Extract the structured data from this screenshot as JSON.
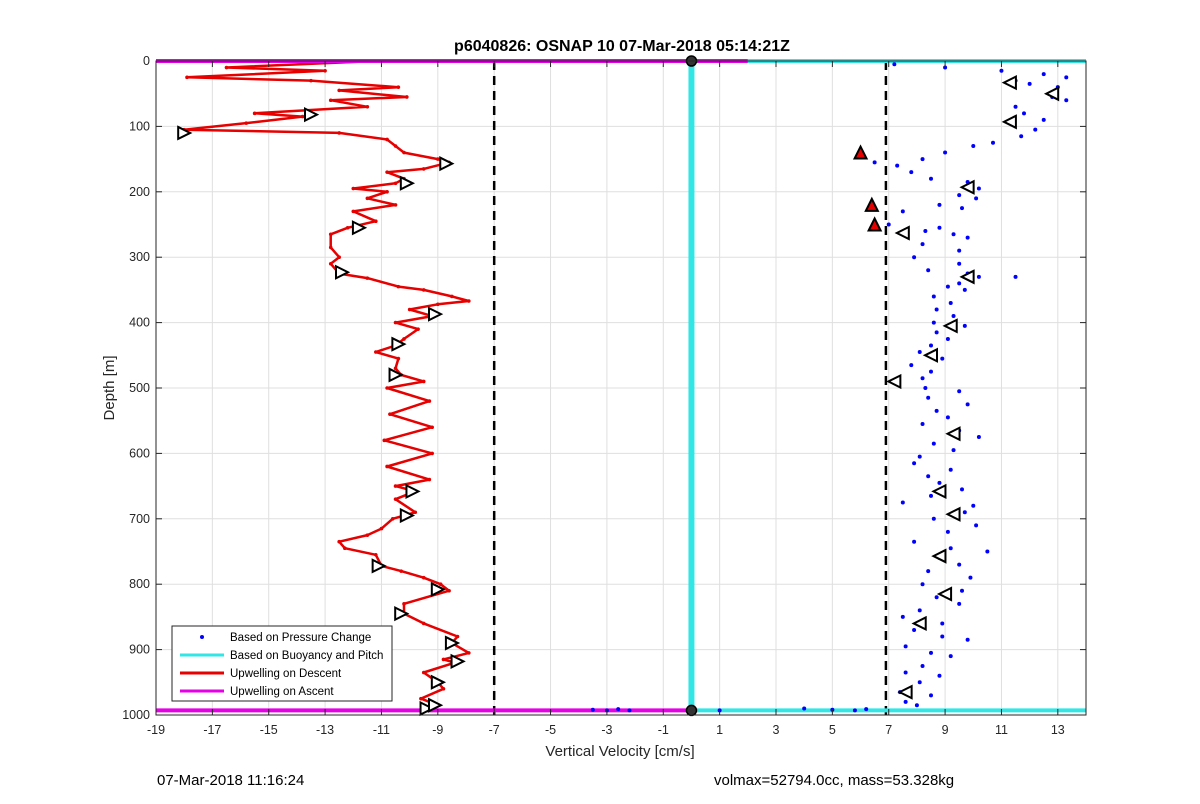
{
  "chart_data": {
    "type": "scatter",
    "title": "p6040826: OSNAP 10 07-Mar-2018 05:14:21Z",
    "xlabel": "Vertical Velocity [cm/s]",
    "ylabel": "Depth [m]",
    "xlim": [
      -19,
      14
    ],
    "ylim": [
      0,
      1000
    ],
    "y_reversed": true,
    "grid": true,
    "x_ticks": [
      -19,
      -17,
      -15,
      -13,
      -11,
      -9,
      -7,
      -5,
      -3,
      -1,
      1,
      3,
      5,
      7,
      9,
      11,
      13
    ],
    "y_ticks": [
      0,
      100,
      200,
      300,
      400,
      500,
      600,
      700,
      800,
      900,
      1000
    ],
    "legend": {
      "placement": "bottom-left",
      "entries": [
        {
          "label": "Based on Pressure Change",
          "color": "#0000ff",
          "style": "dot"
        },
        {
          "label": "Based on Buoyancy and Pitch",
          "color": "#33e6e6",
          "style": "line"
        },
        {
          "label": "Upwelling on Descent",
          "color": "#e60000",
          "style": "line"
        },
        {
          "label": "Upwelling on Ascent",
          "color": "#e600e6",
          "style": "line"
        }
      ]
    },
    "reference_lines": [
      {
        "x": -7,
        "style": "dashed",
        "color": "#000000"
      },
      {
        "x": 6.9,
        "style": "dashed",
        "color": "#000000"
      }
    ],
    "series": [
      {
        "name": "Upwelling on Descent",
        "color": "#e60000",
        "points": [
          [
            -11.2,
            0
          ],
          [
            -16.5,
            10
          ],
          [
            -13,
            15
          ],
          [
            -17.9,
            25
          ],
          [
            -13.5,
            30
          ],
          [
            -10.4,
            40
          ],
          [
            -12.5,
            45
          ],
          [
            -10.1,
            55
          ],
          [
            -12.8,
            60
          ],
          [
            -11.5,
            70
          ],
          [
            -15.5,
            80
          ],
          [
            -13.8,
            85
          ],
          [
            -15.8,
            95
          ],
          [
            -18,
            105
          ],
          [
            -12.5,
            110
          ],
          [
            -10.8,
            120
          ],
          [
            -10.5,
            130
          ],
          [
            -10.2,
            140
          ],
          [
            -9,
            150
          ],
          [
            -8.6,
            155
          ],
          [
            -9.5,
            165
          ],
          [
            -10.8,
            170
          ],
          [
            -10.2,
            180
          ],
          [
            -10.5,
            187
          ],
          [
            -12,
            195
          ],
          [
            -10.8,
            200
          ],
          [
            -11.5,
            210
          ],
          [
            -10.5,
            220
          ],
          [
            -12,
            230
          ],
          [
            -11.2,
            245
          ],
          [
            -12.2,
            255
          ],
          [
            -12.8,
            265
          ],
          [
            -12.8,
            285
          ],
          [
            -12.5,
            300
          ],
          [
            -12.8,
            310
          ],
          [
            -12.5,
            325
          ],
          [
            -11.5,
            332
          ],
          [
            -10.4,
            345
          ],
          [
            -9.5,
            350
          ],
          [
            -8.5,
            360
          ],
          [
            -7.9,
            367
          ],
          [
            -9,
            372
          ],
          [
            -10,
            380
          ],
          [
            -9.2,
            390
          ],
          [
            -10.5,
            400
          ],
          [
            -9.7,
            410
          ],
          [
            -10.2,
            425
          ],
          [
            -10.5,
            435
          ],
          [
            -11.2,
            445
          ],
          [
            -10.4,
            455
          ],
          [
            -10.5,
            470
          ],
          [
            -10.3,
            480
          ],
          [
            -9.5,
            490
          ],
          [
            -10.8,
            500
          ],
          [
            -9.3,
            520
          ],
          [
            -10.7,
            540
          ],
          [
            -9.2,
            560
          ],
          [
            -10.9,
            580
          ],
          [
            -9.2,
            600
          ],
          [
            -10.8,
            620
          ],
          [
            -9.3,
            640
          ],
          [
            -10.5,
            650
          ],
          [
            -9.8,
            658
          ],
          [
            -10.5,
            670
          ],
          [
            -9.8,
            690
          ],
          [
            -10.6,
            700
          ],
          [
            -11,
            715
          ],
          [
            -11.5,
            725
          ],
          [
            -12.5,
            735
          ],
          [
            -12.3,
            745
          ],
          [
            -11.2,
            755
          ],
          [
            -11,
            772
          ],
          [
            -10.3,
            780
          ],
          [
            -9.5,
            790
          ],
          [
            -8.9,
            800
          ],
          [
            -8.6,
            810
          ],
          [
            -10.2,
            830
          ],
          [
            -10.2,
            845
          ],
          [
            -9.5,
            860
          ],
          [
            -8.3,
            880
          ],
          [
            -8.5,
            890
          ],
          [
            -7.9,
            905
          ],
          [
            -8.8,
            915
          ],
          [
            -8.4,
            920
          ],
          [
            -9.5,
            935
          ],
          [
            -9,
            950
          ],
          [
            -8.8,
            960
          ],
          [
            -9.6,
            975
          ],
          [
            -9,
            985
          ],
          [
            -9.2,
            993
          ]
        ]
      },
      {
        "name": "Based on Buoyancy and Pitch",
        "color": "#33e6e6",
        "points": [
          [
            0,
            0
          ],
          [
            0,
            993
          ]
        ]
      },
      {
        "name": "Upwelling on Ascent",
        "color": "#e600e6",
        "points": [
          [
            -19,
            0
          ],
          [
            2,
            0
          ]
        ]
      },
      {
        "name": "Based on Pressure Change",
        "color": "#0000ff",
        "points": [
          [
            7.2,
            5
          ],
          [
            9,
            10
          ],
          [
            11,
            15
          ],
          [
            12.5,
            20
          ],
          [
            13.3,
            25
          ],
          [
            11.5,
            30
          ],
          [
            12,
            35
          ],
          [
            13,
            40
          ],
          [
            12.8,
            55
          ],
          [
            13.3,
            60
          ],
          [
            11.5,
            70
          ],
          [
            11.8,
            80
          ],
          [
            12.5,
            90
          ],
          [
            11.3,
            95
          ],
          [
            12.2,
            105
          ],
          [
            11.7,
            115
          ],
          [
            10.7,
            125
          ],
          [
            10,
            130
          ],
          [
            9,
            140
          ],
          [
            8.2,
            150
          ],
          [
            6.5,
            155
          ],
          [
            7.3,
            160
          ],
          [
            7.8,
            170
          ],
          [
            8.5,
            180
          ],
          [
            9.8,
            185
          ],
          [
            10.2,
            195
          ],
          [
            9.5,
            205
          ],
          [
            10.1,
            210
          ],
          [
            8.8,
            220
          ],
          [
            9.6,
            225
          ],
          [
            7.5,
            230
          ],
          [
            6.5,
            245
          ],
          [
            7,
            250
          ],
          [
            8.8,
            255
          ],
          [
            8.3,
            260
          ],
          [
            9.3,
            265
          ],
          [
            9.8,
            270
          ],
          [
            8.2,
            280
          ],
          [
            9.5,
            290
          ],
          [
            7.9,
            300
          ],
          [
            9.5,
            310
          ],
          [
            8.4,
            320
          ],
          [
            9.8,
            325
          ],
          [
            10.2,
            330
          ],
          [
            11.5,
            330
          ],
          [
            9.5,
            340
          ],
          [
            9.1,
            345
          ],
          [
            9.7,
            350
          ],
          [
            8.6,
            360
          ],
          [
            9.2,
            370
          ],
          [
            8.7,
            380
          ],
          [
            9.3,
            390
          ],
          [
            8.6,
            400
          ],
          [
            9.7,
            405
          ],
          [
            8.7,
            415
          ],
          [
            9.1,
            425
          ],
          [
            8.5,
            435
          ],
          [
            8.1,
            445
          ],
          [
            8.9,
            455
          ],
          [
            7.8,
            465
          ],
          [
            8.5,
            475
          ],
          [
            8.2,
            485
          ],
          [
            7.2,
            490
          ],
          [
            8.3,
            500
          ],
          [
            9.5,
            505
          ],
          [
            8.4,
            515
          ],
          [
            9.8,
            525
          ],
          [
            8.7,
            535
          ],
          [
            9.1,
            545
          ],
          [
            8.2,
            555
          ],
          [
            9.5,
            565
          ],
          [
            10.2,
            575
          ],
          [
            8.6,
            585
          ],
          [
            9.3,
            595
          ],
          [
            8.1,
            605
          ],
          [
            7.9,
            615
          ],
          [
            9.2,
            625
          ],
          [
            8.4,
            635
          ],
          [
            8.8,
            645
          ],
          [
            9.6,
            655
          ],
          [
            8.5,
            665
          ],
          [
            7.5,
            675
          ],
          [
            10,
            680
          ],
          [
            9.7,
            690
          ],
          [
            8.6,
            700
          ],
          [
            10.1,
            710
          ],
          [
            9.1,
            720
          ],
          [
            7.9,
            735
          ],
          [
            9.2,
            745
          ],
          [
            10.5,
            750
          ],
          [
            8.8,
            760
          ],
          [
            9.5,
            770
          ],
          [
            8.4,
            780
          ],
          [
            9.9,
            790
          ],
          [
            8.2,
            800
          ],
          [
            9.6,
            810
          ],
          [
            8.7,
            820
          ],
          [
            9.5,
            830
          ],
          [
            8.1,
            840
          ],
          [
            7.5,
            850
          ],
          [
            8.9,
            860
          ],
          [
            7.9,
            870
          ],
          [
            8.9,
            880
          ],
          [
            9.8,
            885
          ],
          [
            7.6,
            895
          ],
          [
            8.5,
            905
          ],
          [
            9.2,
            910
          ],
          [
            8.2,
            925
          ],
          [
            7.6,
            935
          ],
          [
            8.8,
            940
          ],
          [
            8.1,
            950
          ],
          [
            7.4,
            965
          ],
          [
            8.5,
            970
          ],
          [
            7.6,
            980
          ],
          [
            8,
            985
          ],
          [
            4,
            990
          ],
          [
            5,
            992
          ],
          [
            5.8,
            993
          ],
          [
            6.2,
            991
          ],
          [
            -3,
            993
          ],
          [
            -3.5,
            992
          ],
          [
            -2.2,
            993
          ],
          [
            -2.6,
            991
          ],
          [
            1,
            993
          ]
        ]
      }
    ],
    "markers": {
      "descent": [
        [
          -18,
          110
        ],
        [
          -13.5,
          82
        ],
        [
          -8.7,
          157
        ],
        [
          -10.1,
          187
        ],
        [
          -11.8,
          255
        ],
        [
          -12.4,
          323
        ],
        [
          -9.1,
          387
        ],
        [
          -10.4,
          433
        ],
        [
          -10.5,
          480
        ],
        [
          -9.9,
          658
        ],
        [
          -10.1,
          695
        ],
        [
          -11.1,
          772
        ],
        [
          -9,
          808
        ],
        [
          -10.3,
          845
        ],
        [
          -8.5,
          890
        ],
        [
          -8.3,
          918
        ],
        [
          -9,
          950
        ],
        [
          -9.4,
          990
        ],
        [
          -9.1,
          985
        ]
      ],
      "ascent": [
        [
          11.3,
          33
        ],
        [
          12.8,
          50
        ],
        [
          11.3,
          93
        ],
        [
          9.8,
          193
        ],
        [
          9.8,
          330
        ],
        [
          9.2,
          405
        ],
        [
          8.5,
          450
        ],
        [
          9.3,
          570
        ],
        [
          8.8,
          658
        ],
        [
          9.3,
          693
        ],
        [
          8.8,
          757
        ],
        [
          9,
          815
        ],
        [
          8.1,
          860
        ],
        [
          7.6,
          965
        ]
      ],
      "flagged": [
        [
          6,
          140
        ],
        [
          6.4,
          220
        ],
        [
          6.5,
          250
        ]
      ],
      "left_pointing": [
        [
          7.5,
          263
        ],
        [
          7.2,
          490
        ]
      ],
      "endpoints": [
        [
          0,
          0
        ],
        [
          0,
          993
        ]
      ]
    }
  },
  "footer": {
    "left": "07-Mar-2018 11:16:24",
    "right": "volmax=52794.0cc, mass=53.328kg"
  }
}
